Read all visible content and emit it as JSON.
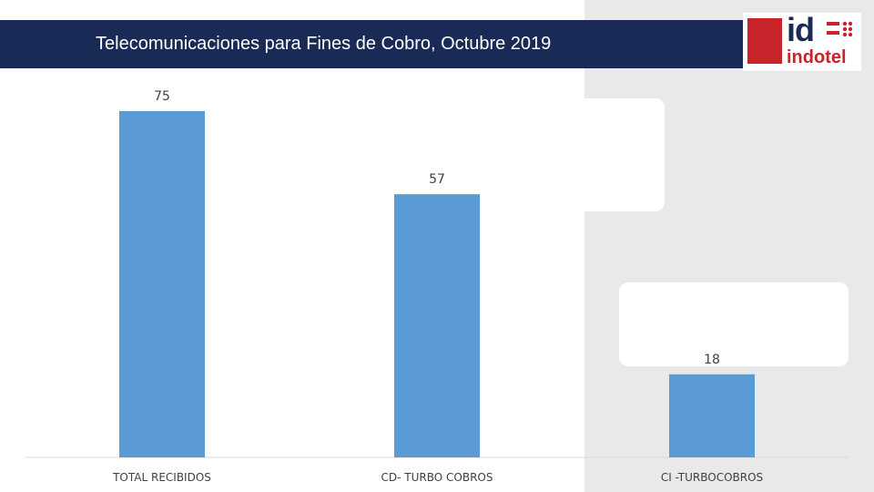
{
  "header": {
    "title": "Telecomunicaciones para Fines de Cobro, Octubre 2019"
  },
  "logo": {
    "mark": "id",
    "text": "indotel"
  },
  "colors": {
    "header_bg": "#1a2a57",
    "bar": "#5b9bd5",
    "logo_red": "#c8242b",
    "panel_gray": "#e9e9e9"
  },
  "chart_data": {
    "type": "bar",
    "categories": [
      "TOTAL RECIBIDOS",
      "CD- TURBO COBROS",
      "CI -TURBOCOBROS"
    ],
    "values": [
      75,
      57,
      18
    ],
    "data_labels": [
      "75",
      "57",
      "18"
    ],
    "ylim": [
      0,
      80
    ],
    "grid": false,
    "legend": "none"
  }
}
